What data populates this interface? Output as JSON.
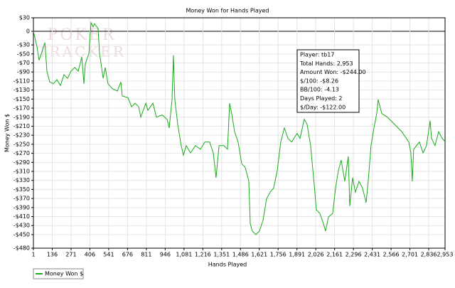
{
  "chart_data": {
    "type": "line",
    "title": "Money Won for Hands Played",
    "xlabel": "Hands Played",
    "ylabel": "Money Won $",
    "watermark": [
      "POKER",
      "TRACKER"
    ],
    "annotations": [
      "Player: tb17",
      "Total Hands: 2,953",
      "Amount Won: -$244.00",
      "$/100: -$8.26",
      "BB/100: -4.13",
      "Days Played: 2",
      "$/Day: -$122.00"
    ],
    "x": [
      1,
      26,
      42,
      67,
      83,
      98,
      118,
      144,
      169,
      195,
      220,
      246,
      271,
      297,
      322,
      348,
      363,
      373,
      399,
      414,
      429,
      439,
      465,
      475,
      501,
      516,
      536,
      567,
      603,
      628,
      638,
      679,
      705,
      730,
      756,
      771,
      807,
      822,
      858,
      883,
      924,
      960,
      975,
      995,
      1005,
      1015,
      1036,
      1061,
      1077,
      1097,
      1128,
      1163,
      1199,
      1230,
      1265,
      1291,
      1311,
      1332,
      1367,
      1393,
      1408,
      1423,
      1444,
      1469,
      1495,
      1520,
      1546,
      1556,
      1571,
      1597,
      1622,
      1648,
      1673,
      1699,
      1724,
      1750,
      1775,
      1801,
      1826,
      1852,
      1892,
      1913,
      1943,
      1964,
      1989,
      2015,
      2030,
      2055,
      2081,
      2096,
      2117,
      2147,
      2168,
      2188,
      2208,
      2234,
      2259,
      2270,
      2290,
      2310,
      2336,
      2361,
      2387,
      2402,
      2422,
      2443,
      2463,
      2473,
      2499,
      2540,
      2591,
      2642,
      2693,
      2708,
      2718,
      2728,
      2769,
      2795,
      2820,
      2846,
      2856,
      2881,
      2907,
      2932,
      2953
    ],
    "series": [
      {
        "name": "Money Won $",
        "color": "#1aaa1a",
        "values": [
          0,
          -33,
          -64,
          -41,
          -25,
          -88,
          -112,
          -116,
          -107,
          -120,
          -96,
          -104,
          -88,
          -80,
          -88,
          -57,
          -116,
          -72,
          -49,
          19,
          10,
          17,
          6,
          -49,
          -104,
          -80,
          -116,
          -127,
          -132,
          -112,
          -143,
          -147,
          -167,
          -159,
          -167,
          -190,
          -159,
          -175,
          -159,
          -190,
          -185,
          -195,
          -214,
          -151,
          -53,
          -151,
          -206,
          -253,
          -274,
          -253,
          -269,
          -253,
          -261,
          -245,
          -245,
          -269,
          -324,
          -253,
          -253,
          -261,
          -159,
          -182,
          -222,
          -245,
          -293,
          -301,
          -332,
          -426,
          -442,
          -450,
          -442,
          -418,
          -371,
          -356,
          -347,
          -308,
          -245,
          -214,
          -237,
          -245,
          -226,
          -237,
          -195,
          -206,
          -253,
          -340,
          -395,
          -403,
          -426,
          -442,
          -411,
          -403,
          -347,
          -308,
          -285,
          -332,
          -277,
          -387,
          -324,
          -356,
          -332,
          -347,
          -379,
          -332,
          -253,
          -214,
          -182,
          -151,
          -182,
          -190,
          -206,
          -222,
          -245,
          -269,
          -332,
          -261,
          -245,
          -269,
          -253,
          -198,
          -237,
          -253,
          -222,
          -237,
          -244
        ]
      }
    ],
    "xlim": [
      1,
      2953
    ],
    "ylim": [
      -480,
      30
    ],
    "xticks": [
      1,
      136,
      271,
      406,
      541,
      676,
      811,
      946,
      {
        "value": 1081,
        "label": "1,081"
      },
      {
        "value": 1216,
        "label": "1,216"
      },
      {
        "value": 1351,
        "label": "1,351"
      },
      {
        "value": 1486,
        "label": "1,486"
      },
      {
        "value": 1621,
        "label": "1,621"
      },
      {
        "value": 1756,
        "label": "1,756"
      },
      {
        "value": 1891,
        "label": "1,891"
      },
      {
        "value": 2026,
        "label": "2,026"
      },
      {
        "value": 2161,
        "label": "2,161"
      },
      {
        "value": 2296,
        "label": "2,296"
      },
      {
        "value": 2431,
        "label": "2,431"
      },
      {
        "value": 2566,
        "label": "2,566"
      },
      {
        "value": 2701,
        "label": "2,701"
      },
      {
        "value": 2836,
        "label": "2,836"
      },
      {
        "value": 2953,
        "label": "2,953"
      }
    ],
    "yticks": [
      {
        "value": 30,
        "label": "$30"
      },
      0,
      {
        "value": -30,
        "label": "-$30"
      },
      {
        "value": -50,
        "label": "-$50"
      },
      {
        "value": -70,
        "label": "-$70"
      },
      {
        "value": -90,
        "label": "-$90"
      },
      {
        "value": -110,
        "label": "-$110"
      },
      {
        "value": -130,
        "label": "-$130"
      },
      {
        "value": -150,
        "label": "-$150"
      },
      {
        "value": -170,
        "label": "-$170"
      },
      {
        "value": -190,
        "label": "-$190"
      },
      {
        "value": -210,
        "label": "-$210"
      },
      {
        "value": -230,
        "label": "-$230"
      },
      {
        "value": -250,
        "label": "-$250"
      },
      {
        "value": -270,
        "label": "-$270"
      },
      {
        "value": -290,
        "label": "-$290"
      },
      {
        "value": -310,
        "label": "-$310"
      },
      {
        "value": -330,
        "label": "-$330"
      },
      {
        "value": -350,
        "label": "-$350"
      },
      {
        "value": -370,
        "label": "-$370"
      },
      {
        "value": -390,
        "label": "-$390"
      },
      {
        "value": -410,
        "label": "-$410"
      },
      {
        "value": -430,
        "label": "-$430"
      },
      {
        "value": -450,
        "label": "-$450"
      },
      {
        "value": -480,
        "label": "-$480"
      }
    ],
    "grid": true,
    "legend": "bottom-left"
  }
}
